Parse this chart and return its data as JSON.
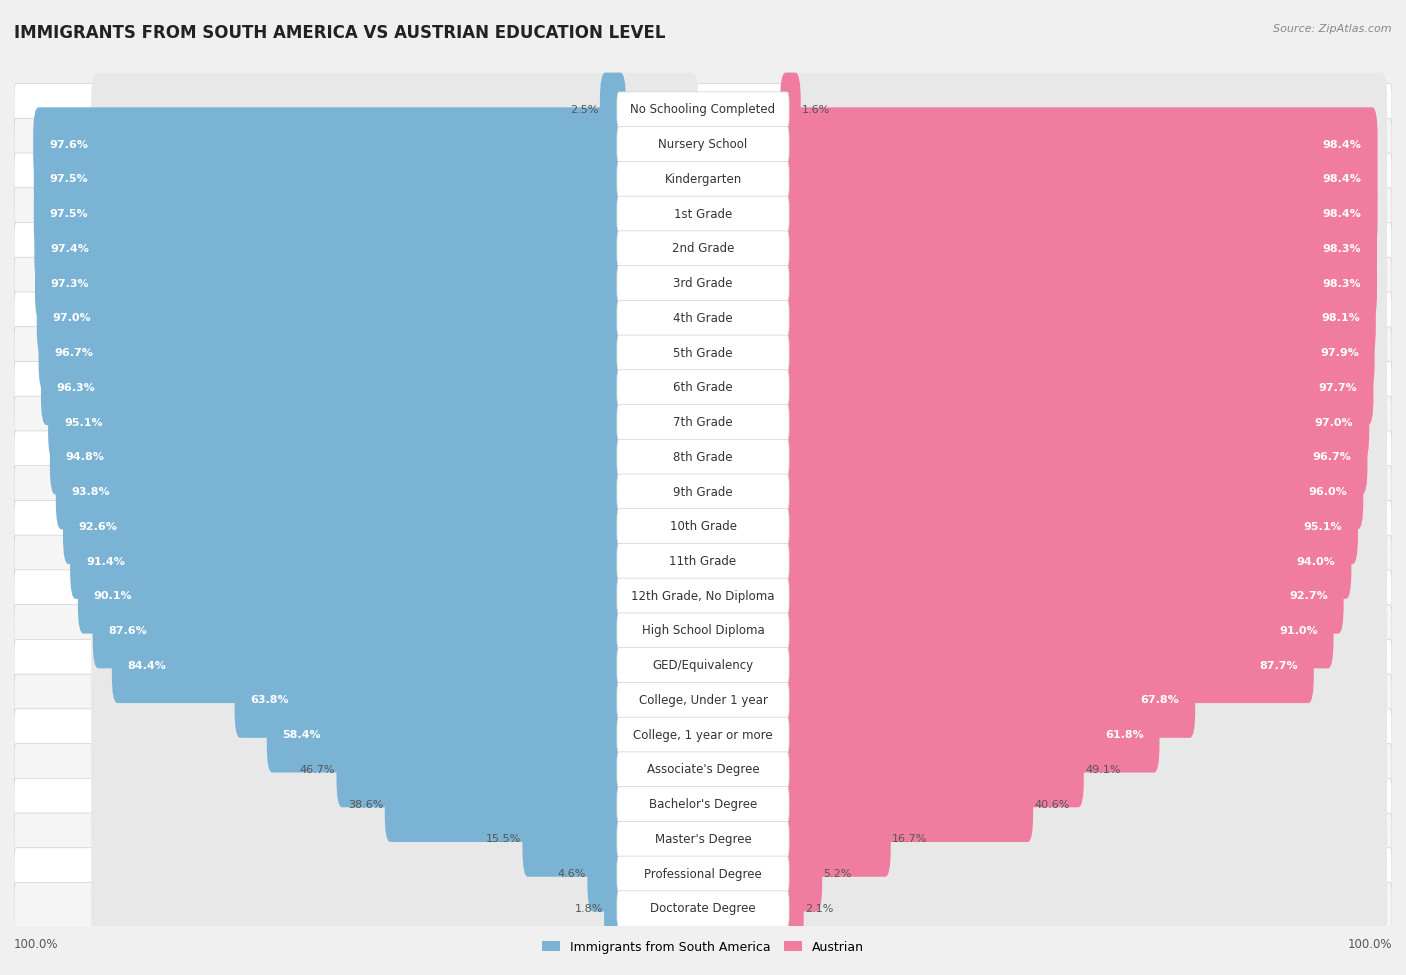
{
  "title": "IMMIGRANTS FROM SOUTH AMERICA VS AUSTRIAN EDUCATION LEVEL",
  "source": "Source: ZipAtlas.com",
  "categories": [
    "No Schooling Completed",
    "Nursery School",
    "Kindergarten",
    "1st Grade",
    "2nd Grade",
    "3rd Grade",
    "4th Grade",
    "5th Grade",
    "6th Grade",
    "7th Grade",
    "8th Grade",
    "9th Grade",
    "10th Grade",
    "11th Grade",
    "12th Grade, No Diploma",
    "High School Diploma",
    "GED/Equivalency",
    "College, Under 1 year",
    "College, 1 year or more",
    "Associate's Degree",
    "Bachelor's Degree",
    "Master's Degree",
    "Professional Degree",
    "Doctorate Degree"
  ],
  "left_values": [
    2.5,
    97.6,
    97.5,
    97.5,
    97.4,
    97.3,
    97.0,
    96.7,
    96.3,
    95.1,
    94.8,
    93.8,
    92.6,
    91.4,
    90.1,
    87.6,
    84.4,
    63.8,
    58.4,
    46.7,
    38.6,
    15.5,
    4.6,
    1.8
  ],
  "right_values": [
    1.6,
    98.4,
    98.4,
    98.4,
    98.3,
    98.3,
    98.1,
    97.9,
    97.7,
    97.0,
    96.7,
    96.0,
    95.1,
    94.0,
    92.7,
    91.0,
    87.7,
    67.8,
    61.8,
    49.1,
    40.6,
    16.7,
    5.2,
    2.1
  ],
  "left_color": "#7ab3d4",
  "right_color": "#f07ca0",
  "left_label": "Immigrants from South America",
  "right_label": "Austrian",
  "bg_color": "#f0f0f0",
  "row_color_even": "#ffffff",
  "row_color_odd": "#f5f5f5",
  "bar_track_color": "#e8e8e8",
  "title_fontsize": 12,
  "label_fontsize": 8.5,
  "value_fontsize": 8,
  "source_fontsize": 8
}
